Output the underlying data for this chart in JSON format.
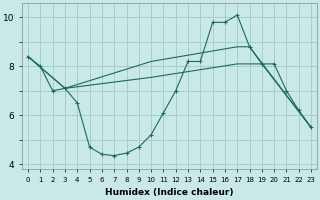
{
  "xlabel": "Humidex (Indice chaleur)",
  "background_color": "#c9e8e8",
  "grid_color": "#a8cccc",
  "line_color": "#1a6b5a",
  "xlim": [
    -0.5,
    23.5
  ],
  "ylim": [
    3.8,
    10.6
  ],
  "line1_x": [
    0,
    1,
    2,
    3,
    4,
    5,
    6,
    7,
    8,
    9,
    10,
    11,
    12,
    13,
    14,
    15,
    16,
    17,
    18,
    19,
    20,
    21,
    22,
    23
  ],
  "line1_y": [
    8.4,
    8.0,
    7.0,
    7.1,
    6.5,
    4.7,
    4.4,
    4.35,
    4.45,
    4.7,
    5.2,
    6.1,
    7.0,
    8.2,
    8.2,
    9.8,
    9.8,
    10.1,
    8.8,
    8.1,
    8.1,
    7.0,
    6.2,
    5.5
  ],
  "line2_x": [
    0,
    3,
    10,
    17,
    19,
    23
  ],
  "line2_y": [
    8.4,
    7.1,
    7.55,
    8.1,
    8.1,
    5.5
  ],
  "line3_x": [
    0,
    3,
    10,
    17,
    18,
    23
  ],
  "line3_y": [
    8.4,
    7.1,
    8.2,
    8.8,
    8.8,
    5.5
  ],
  "yticks": [
    4,
    5,
    6,
    7,
    8,
    9,
    10
  ],
  "ytick_labels": [
    "4",
    "",
    "6",
    "",
    "8",
    "",
    "10"
  ]
}
